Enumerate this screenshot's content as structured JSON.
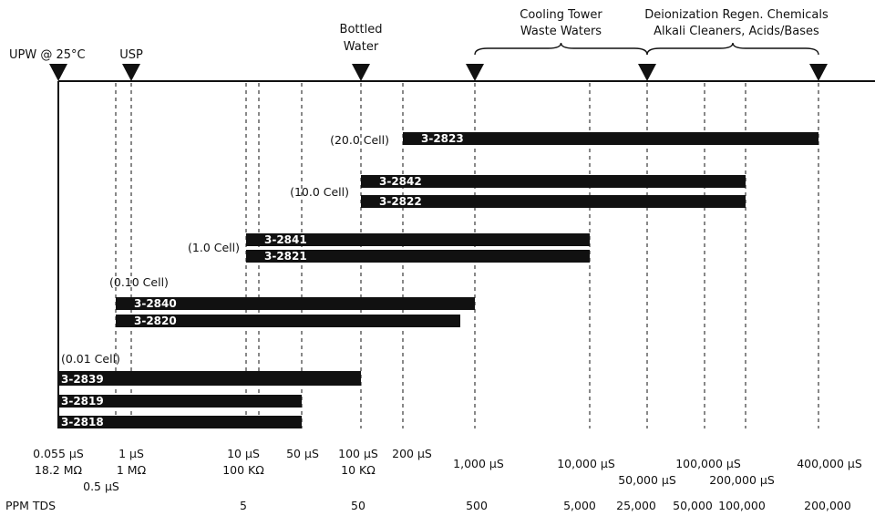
{
  "chart_data": {
    "type": "bar",
    "x_scale": "log",
    "x_unit": "µS",
    "markers": [
      {
        "name": "UPW @ 25°C",
        "value": 0.055
      },
      {
        "name": "USP",
        "value": 1
      },
      {
        "name": "Bottled Water",
        "value": 100
      },
      {
        "name": "Cooling Tower Waste Waters",
        "range": [
          1000,
          50000
        ]
      },
      {
        "name": "Deionization Regen. Chemicals Alkali Cleaners, Acids/Bases",
        "range": [
          50000,
          400000
        ]
      }
    ],
    "marker_texts": {
      "upw": "UPW @ 25°C",
      "usp": "USP",
      "bottled_1": "Bottled",
      "bottled_2": "Water",
      "cooling_1": "Cooling Tower",
      "cooling_2": "Waste Waters",
      "deion_1": "Deionization Regen. Chemicals",
      "deion_2": "Alkali Cleaners, Acids/Bases"
    },
    "cell_groups": [
      {
        "label": "(20.0 Cell)"
      },
      {
        "label": "(10.0 Cell)"
      },
      {
        "label": "(1.0 Cell)"
      },
      {
        "label": "(0.10 Cell)"
      },
      {
        "label": "(0.01 Cell)"
      }
    ],
    "series": [
      {
        "name": "3-2823",
        "range": [
          200,
          400000
        ]
      },
      {
        "name": "3-2842",
        "range": [
          100,
          200000
        ]
      },
      {
        "name": "3-2822",
        "range": [
          100,
          200000
        ]
      },
      {
        "name": "3-2841",
        "range": [
          10,
          10000
        ]
      },
      {
        "name": "3-2821",
        "range": [
          10,
          10000
        ]
      },
      {
        "name": "3-2840",
        "range": [
          0.5,
          1000
        ]
      },
      {
        "name": "3-2820",
        "range": [
          0.5,
          800
        ]
      },
      {
        "name": "3-2839",
        "range": [
          0.055,
          100
        ]
      },
      {
        "name": "3-2819",
        "range": [
          0.055,
          50
        ]
      },
      {
        "name": "3-2818",
        "range": [
          0.055,
          50
        ]
      }
    ],
    "ticks": [
      {
        "value": 0.055,
        "lines": [
          "0.055 µS",
          "18.2 MΩ"
        ],
        "dashed": false
      },
      {
        "value": 0.5,
        "lines": [
          "0.5 µS"
        ],
        "dashed": true
      },
      {
        "value": 1,
        "lines": [
          "1 µS",
          "1 MΩ"
        ],
        "dashed": true
      },
      {
        "value": 10,
        "lines": [
          "10 µS",
          "100 KΩ"
        ],
        "dashed": true
      },
      {
        "value": 12.5,
        "lines": [],
        "dashed": true
      },
      {
        "value": 50,
        "lines": [
          "50 µS"
        ],
        "dashed": true
      },
      {
        "value": 100,
        "lines": [
          "100 µS",
          "10 KΩ"
        ],
        "dashed": true
      },
      {
        "value": 200,
        "lines": [
          "200 µS"
        ],
        "dashed": true
      },
      {
        "value": 1000,
        "lines": [
          "1,000 µS"
        ],
        "dashed": true
      },
      {
        "value": 10000,
        "lines": [
          "10,000 µS"
        ],
        "dashed": true
      },
      {
        "value": 50000,
        "lines": [
          "50,000 µS"
        ],
        "dashed": true
      },
      {
        "value": 100000,
        "lines": [
          "100,000 µS"
        ],
        "dashed": true
      },
      {
        "value": 200000,
        "lines": [
          "200,000 µS"
        ],
        "dashed": true
      },
      {
        "value": 400000,
        "lines": [
          "400,000 µS"
        ],
        "dashed": true
      }
    ],
    "tds_label": "PPM TDS",
    "tds": [
      {
        "value": 10,
        "label": "5"
      },
      {
        "value": 100,
        "label": "50"
      },
      {
        "value": 1000,
        "label": "500"
      },
      {
        "value": 10000,
        "label": "5,000"
      },
      {
        "value": 50000,
        "label": "25,000"
      },
      {
        "value": 100000,
        "label": "50,000"
      },
      {
        "value": 200000,
        "label": "100,000"
      },
      {
        "value": 400000,
        "label": "200,000"
      }
    ]
  }
}
